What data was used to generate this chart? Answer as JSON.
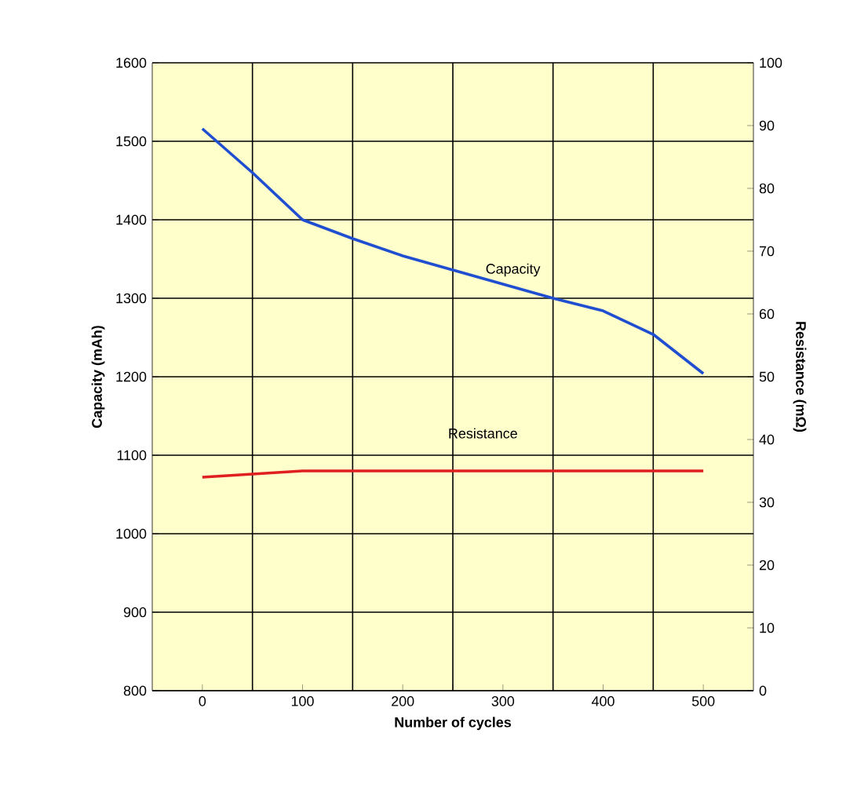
{
  "chart_data": {
    "type": "line",
    "xlabel": "Number of cycles",
    "ylabel": "Capacity (mAh)",
    "y2label": "Resistance (mΩ)",
    "xlim": [
      -50,
      550
    ],
    "xticks": [
      0,
      100,
      200,
      300,
      400,
      500
    ],
    "ylim": [
      800,
      1600
    ],
    "yticks": [
      800,
      900,
      1000,
      1100,
      1200,
      1300,
      1400,
      1500,
      1600
    ],
    "y2lim": [
      0,
      100
    ],
    "y2ticks": [
      0,
      10,
      20,
      30,
      40,
      50,
      60,
      70,
      80,
      90,
      100
    ],
    "grid": true,
    "legend": false,
    "marker": "none",
    "line_style": "solid",
    "series": [
      {
        "name": "Capacity",
        "color": "#1f4fd0",
        "x": [
          0,
          50,
          100,
          150,
          200,
          250,
          300,
          350,
          400,
          450,
          500
        ],
        "values": [
          1516,
          1460,
          1400,
          1376,
          1354,
          1336,
          1318,
          1300,
          1284,
          1254,
          1204
        ]
      },
      {
        "name": "Resistance",
        "color": "#e02020",
        "axis": "y2",
        "x": [
          0,
          50,
          100,
          150,
          200,
          250,
          300,
          350,
          400,
          450,
          500
        ],
        "values": [
          34,
          34.5,
          35,
          35,
          35,
          35,
          35,
          35,
          35,
          35,
          35
        ]
      }
    ]
  }
}
